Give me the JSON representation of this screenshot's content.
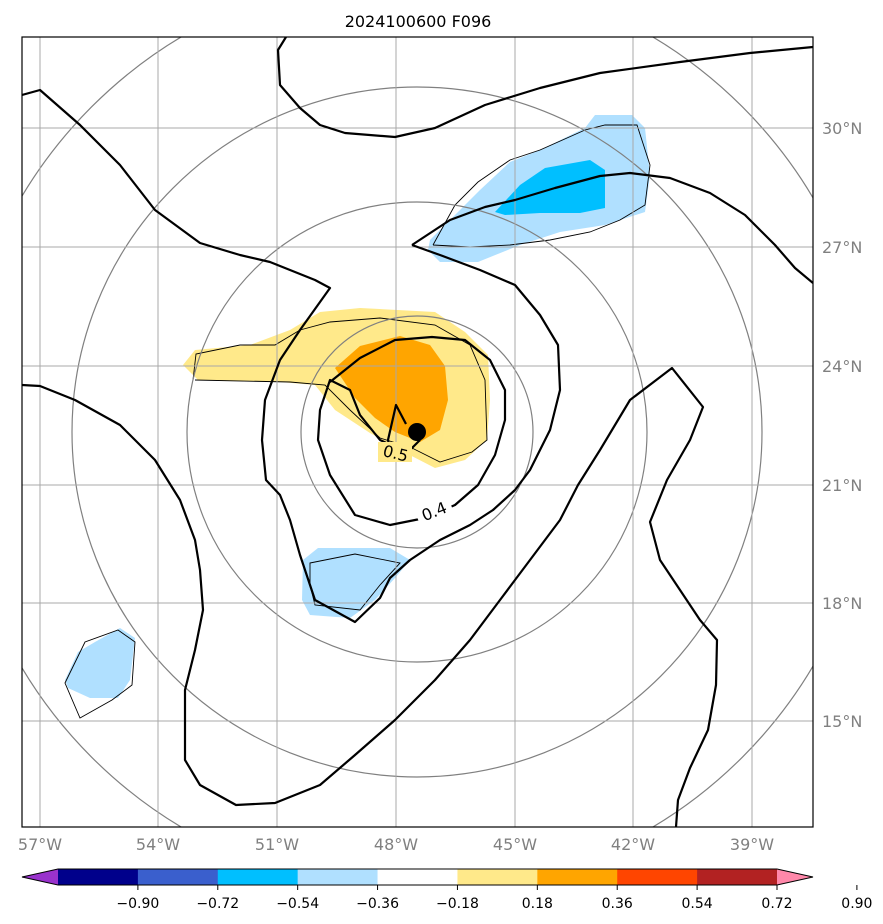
{
  "title": "2024100600 F096",
  "map": {
    "lon_ticks": [
      "57°W",
      "54°W",
      "51°W",
      "48°W",
      "45°W",
      "42°W",
      "39°W"
    ],
    "lat_ticks": [
      "30°N",
      "27°N",
      "24°N",
      "21°N",
      "18°N",
      "15°N"
    ],
    "contour_labels": [
      "0.5",
      "0.4"
    ],
    "center_marker": "filled-circle"
  },
  "colorbar": {
    "ticks": [
      "−0.90",
      "−0.72",
      "−0.54",
      "−0.36",
      "−0.18",
      "0.18",
      "0.36",
      "0.54",
      "0.72",
      "0.90"
    ],
    "colors": [
      "#9932CC",
      "#00008B",
      "#3A5FCD",
      "#00BFFF",
      "#B0E0FF",
      "#FFFFFF",
      "#FFE98A",
      "#FFA500",
      "#FF4500",
      "#B22222",
      "#FF88AA"
    ]
  },
  "fill_colors": {
    "light_blue": "#B0E0FF",
    "deep_sky_blue": "#00BFFF",
    "light_yellow": "#FFE98A",
    "orange": "#FFA500"
  }
}
